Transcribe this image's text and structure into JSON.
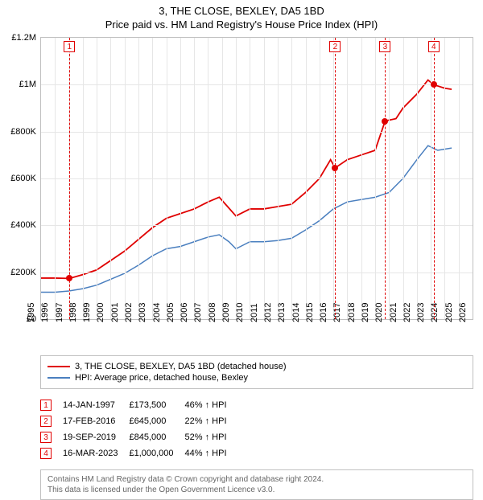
{
  "title": {
    "main": "3, THE CLOSE, BEXLEY, DA5 1BD",
    "sub": "Price paid vs. HM Land Registry's House Price Index (HPI)",
    "fontsize": 13,
    "color": "#000000"
  },
  "chart": {
    "type": "line",
    "background_color": "#ffffff",
    "grid_color": "#e6e6e6",
    "border_color": "#c0c0c0",
    "x_axis": {
      "min": 1995,
      "max": 2026,
      "ticks": [
        1995,
        1996,
        1997,
        1998,
        1999,
        2000,
        2001,
        2002,
        2003,
        2004,
        2005,
        2006,
        2007,
        2008,
        2009,
        2010,
        2011,
        2012,
        2013,
        2014,
        2015,
        2016,
        2017,
        2018,
        2019,
        2020,
        2021,
        2022,
        2023,
        2024,
        2025,
        2026
      ],
      "label_fontsize": 11,
      "label_rotation": 90
    },
    "y_axis": {
      "min": 0,
      "max": 1200000,
      "ticks": [
        {
          "v": 0,
          "label": "£0"
        },
        {
          "v": 200000,
          "label": "£200K"
        },
        {
          "v": 400000,
          "label": "£400K"
        },
        {
          "v": 600000,
          "label": "£600K"
        },
        {
          "v": 800000,
          "label": "£800K"
        },
        {
          "v": 1000000,
          "label": "£1M"
        },
        {
          "v": 1200000,
          "label": "£1.2M"
        }
      ],
      "label_fontsize": 11
    },
    "series": [
      {
        "name": "3, THE CLOSE, BEXLEY, DA5 1BD (detached house)",
        "color": "#e00000",
        "line_width": 1.8,
        "data": [
          [
            1995.0,
            175000
          ],
          [
            1996.0,
            175000
          ],
          [
            1997.04,
            173500
          ],
          [
            1998.0,
            190000
          ],
          [
            1999.0,
            210000
          ],
          [
            2000.0,
            250000
          ],
          [
            2001.0,
            290000
          ],
          [
            2002.0,
            340000
          ],
          [
            2003.0,
            390000
          ],
          [
            2004.0,
            430000
          ],
          [
            2005.0,
            450000
          ],
          [
            2006.0,
            470000
          ],
          [
            2007.0,
            500000
          ],
          [
            2007.8,
            520000
          ],
          [
            2008.4,
            480000
          ],
          [
            2009.0,
            440000
          ],
          [
            2010.0,
            470000
          ],
          [
            2011.0,
            470000
          ],
          [
            2012.0,
            480000
          ],
          [
            2013.0,
            490000
          ],
          [
            2014.0,
            540000
          ],
          [
            2015.0,
            600000
          ],
          [
            2015.8,
            680000
          ],
          [
            2016.13,
            645000
          ],
          [
            2017.0,
            680000
          ],
          [
            2018.0,
            700000
          ],
          [
            2019.0,
            720000
          ],
          [
            2019.72,
            845000
          ],
          [
            2020.5,
            855000
          ],
          [
            2021.0,
            900000
          ],
          [
            2022.0,
            960000
          ],
          [
            2022.8,
            1020000
          ],
          [
            2023.21,
            1000000
          ],
          [
            2024.0,
            985000
          ],
          [
            2024.5,
            980000
          ]
        ]
      },
      {
        "name": "HPI: Average price, detached house, Bexley",
        "color": "#4A7FBF",
        "line_width": 1.5,
        "data": [
          [
            1995.0,
            115000
          ],
          [
            1996.0,
            115000
          ],
          [
            1997.0,
            120000
          ],
          [
            1998.0,
            130000
          ],
          [
            1999.0,
            145000
          ],
          [
            2000.0,
            170000
          ],
          [
            2001.0,
            195000
          ],
          [
            2002.0,
            230000
          ],
          [
            2003.0,
            270000
          ],
          [
            2004.0,
            300000
          ],
          [
            2005.0,
            310000
          ],
          [
            2006.0,
            330000
          ],
          [
            2007.0,
            350000
          ],
          [
            2007.8,
            360000
          ],
          [
            2008.5,
            330000
          ],
          [
            2009.0,
            300000
          ],
          [
            2010.0,
            330000
          ],
          [
            2011.0,
            330000
          ],
          [
            2012.0,
            335000
          ],
          [
            2013.0,
            345000
          ],
          [
            2014.0,
            380000
          ],
          [
            2015.0,
            420000
          ],
          [
            2016.0,
            470000
          ],
          [
            2017.0,
            500000
          ],
          [
            2018.0,
            510000
          ],
          [
            2019.0,
            520000
          ],
          [
            2020.0,
            540000
          ],
          [
            2021.0,
            600000
          ],
          [
            2022.0,
            680000
          ],
          [
            2022.8,
            740000
          ],
          [
            2023.5,
            720000
          ],
          [
            2024.5,
            730000
          ]
        ]
      }
    ],
    "markers": [
      {
        "n": "1",
        "x": 1997.04,
        "y": 173500
      },
      {
        "n": "2",
        "x": 2016.13,
        "y": 645000
      },
      {
        "n": "3",
        "x": 2019.72,
        "y": 845000
      },
      {
        "n": "4",
        "x": 2023.21,
        "y": 1000000
      }
    ],
    "marker_color": "#e00000",
    "marker_line_style": "dashed"
  },
  "legend": {
    "border_color": "#c0c0c0",
    "fontsize": 11,
    "items": [
      {
        "color": "#e00000",
        "label": "3, THE CLOSE, BEXLEY, DA5 1BD (detached house)"
      },
      {
        "color": "#4A7FBF",
        "label": "HPI: Average price, detached house, Bexley"
      }
    ]
  },
  "sales": [
    {
      "n": "1",
      "date": "14-JAN-1997",
      "price": "£173,500",
      "pct": "46%",
      "arrow": "↑",
      "suffix": "HPI"
    },
    {
      "n": "2",
      "date": "17-FEB-2016",
      "price": "£645,000",
      "pct": "22%",
      "arrow": "↑",
      "suffix": "HPI"
    },
    {
      "n": "3",
      "date": "19-SEP-2019",
      "price": "£845,000",
      "pct": "52%",
      "arrow": "↑",
      "suffix": "HPI"
    },
    {
      "n": "4",
      "date": "16-MAR-2023",
      "price": "£1,000,000",
      "pct": "44%",
      "arrow": "↑",
      "suffix": "HPI"
    }
  ],
  "footer": {
    "line1": "Contains HM Land Registry data © Crown copyright and database right 2024.",
    "line2": "This data is licensed under the Open Government Licence v3.0.",
    "color": "#666666",
    "fontsize": 10
  }
}
